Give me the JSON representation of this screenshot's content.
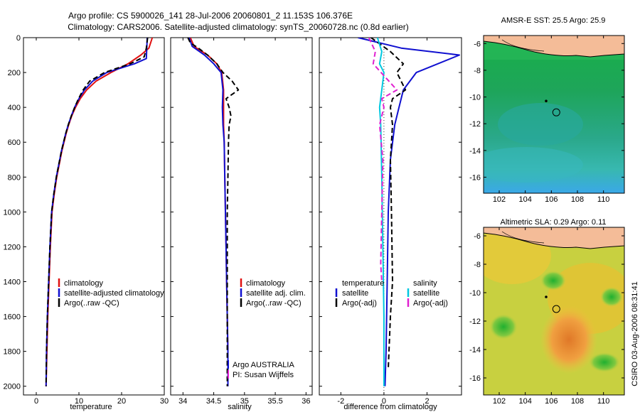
{
  "title_line1": "Argo profile: CS 5900026_141 28-Jul-2006 20060801_2 11.153S 106.376E",
  "title_line2": "Climatology: CARS2006. Satellite-adjusted climatology: synTS_20060728.nc (0.8d earlier)",
  "side_label": "CSIRO 03-Aug-2006 08:31:41",
  "chart_data": [
    {
      "type": "line",
      "xlabel": "temperature",
      "xlim": [
        -3,
        30
      ],
      "ylim": [
        2050,
        0
      ],
      "xticks": [
        0,
        10,
        20,
        30
      ],
      "yticks": [
        0,
        200,
        400,
        600,
        800,
        1000,
        1200,
        1400,
        1600,
        1800,
        2000
      ],
      "legend": [
        "climatology",
        "satellite-adjusted climatology",
        "Argo(..raw -QC)"
      ],
      "series": [
        {
          "name": "climatology",
          "color": "#e01010",
          "x": [
            27.2,
            26.4,
            24.5,
            21.5,
            17.5,
            14.0,
            11.8,
            10.3,
            9.2,
            8.3,
            7.6,
            7.0,
            6.5,
            6.0,
            5.6,
            5.2,
            4.8,
            4.2,
            3.7,
            3.3,
            3.0,
            2.7,
            2.5,
            2.3
          ],
          "y": [
            0,
            60,
            100,
            150,
            200,
            250,
            300,
            350,
            400,
            450,
            500,
            550,
            600,
            650,
            700,
            750,
            800,
            900,
            1000,
            1200,
            1400,
            1600,
            1800,
            2000
          ]
        },
        {
          "name": "satellite-adjusted climatology",
          "color": "#1010d0",
          "x": [
            26.0,
            25.9,
            25.8,
            23.0,
            16.5,
            13.2,
            11.3,
            10.0,
            9.0,
            8.2,
            7.5,
            6.9,
            6.4,
            5.9,
            5.5,
            5.1,
            4.7,
            4.1,
            3.6,
            3.2,
            2.9,
            2.6,
            2.4,
            2.3
          ],
          "y": [
            0,
            60,
            120,
            150,
            200,
            250,
            300,
            350,
            400,
            450,
            500,
            550,
            600,
            650,
            700,
            750,
            800,
            900,
            1000,
            1200,
            1400,
            1600,
            1800,
            2000
          ]
        },
        {
          "name": "Argo(..raw -QC)",
          "color": "#000000",
          "x": [
            26.1,
            25.8,
            25.3,
            22.0,
            16.0,
            12.5,
            11.0,
            9.9,
            9.0,
            8.2,
            7.5,
            6.9,
            6.4,
            5.9,
            5.5,
            5.1,
            4.7,
            4.1,
            3.6,
            3.2,
            2.9,
            2.6,
            2.4,
            2.3
          ],
          "y": [
            0,
            60,
            110,
            150,
            200,
            250,
            300,
            350,
            400,
            450,
            500,
            550,
            600,
            650,
            700,
            750,
            800,
            900,
            1000,
            1200,
            1400,
            1600,
            1800,
            2000
          ]
        }
      ]
    },
    {
      "type": "line",
      "xlabel": "salinity",
      "xlim": [
        33.8,
        36.1
      ],
      "ylim": [
        2050,
        0
      ],
      "xticks": [
        34,
        34.5,
        35,
        35.5,
        36
      ],
      "yticks": [
        0,
        200,
        400,
        600,
        800,
        1000,
        1200,
        1400,
        1600,
        1800,
        2000
      ],
      "legend": [
        "climatology",
        "satellite adj. clim.",
        "Argo(..raw -QC)"
      ],
      "annotation": [
        "Argo AUSTRALIA",
        "PI: Susan Wijffels"
      ],
      "series": [
        {
          "name": "climatology",
          "color": "#e01010",
          "x": [
            34.12,
            34.18,
            34.4,
            34.55,
            34.63,
            34.66,
            34.66,
            34.66,
            34.67,
            34.68,
            34.69,
            34.7,
            34.71,
            34.72,
            34.73,
            34.73
          ],
          "y": [
            0,
            50,
            100,
            150,
            200,
            300,
            400,
            500,
            600,
            800,
            1000,
            1200,
            1400,
            1600,
            1800,
            2000
          ]
        },
        {
          "name": "satellite adj. clim.",
          "color": "#1010d0",
          "x": [
            34.1,
            34.15,
            34.35,
            34.5,
            34.62,
            34.65,
            34.64,
            34.65,
            34.67,
            34.68,
            34.69,
            34.7,
            34.71,
            34.72,
            34.73,
            34.73
          ],
          "y": [
            0,
            50,
            100,
            150,
            200,
            300,
            400,
            500,
            600,
            800,
            1000,
            1200,
            1400,
            1600,
            1800,
            2000
          ]
        },
        {
          "name": "Argo(..raw -QC)",
          "color": "#000000",
          "x": [
            34.08,
            34.12,
            34.25,
            34.4,
            34.55,
            34.65,
            34.8,
            34.9,
            34.7,
            34.75,
            34.78,
            34.75,
            34.74,
            34.73,
            34.72,
            34.72,
            34.72,
            34.72
          ],
          "y": [
            0,
            30,
            60,
            100,
            150,
            200,
            250,
            300,
            350,
            400,
            450,
            500,
            600,
            800,
            1000,
            1400,
            1600,
            2000
          ]
        }
      ]
    },
    {
      "type": "line",
      "xlabel": "difference from climatology",
      "xlim": [
        -3,
        3.6
      ],
      "ylim": [
        2050,
        0
      ],
      "xticks": [
        -2,
        0,
        2
      ],
      "yticks": [
        0,
        200,
        400,
        600,
        800,
        1000,
        1200,
        1400,
        1600,
        1800,
        2000
      ],
      "legend_temperature": {
        "heading": "temperature",
        "items": [
          "satellite",
          "Argo(-adj)"
        ]
      },
      "legend_salinity": {
        "heading": "salinity",
        "items": [
          "satellite",
          "Argo(-adj)"
        ]
      },
      "series": [
        {
          "name": "temperature satellite",
          "color": "#1010d0",
          "x": [
            -1.2,
            0.8,
            3.5,
            1.5,
            0.9,
            0.7,
            0.5,
            0.3,
            0.2,
            0.15,
            0.1,
            0.05
          ],
          "y": [
            0,
            60,
            100,
            200,
            300,
            400,
            500,
            700,
            1000,
            1400,
            1800,
            2000
          ]
        },
        {
          "name": "temperature Argo(-adj)",
          "color": "#000000",
          "x": [
            -0.6,
            0.3,
            0.9,
            0.6,
            1.0,
            0.4,
            0.3,
            0.4,
            0.3,
            0.35,
            0.4,
            0.3,
            0.2
          ],
          "y": [
            0,
            80,
            150,
            200,
            300,
            350,
            400,
            500,
            700,
            1000,
            1400,
            1600,
            1900
          ]
        },
        {
          "name": "salinity satellite",
          "color": "#00c8e0",
          "x": [
            -0.3,
            -0.1,
            -0.2,
            0.0,
            -0.1,
            -0.2,
            -0.15,
            -0.1,
            -0.05,
            0.0,
            0.0
          ],
          "y": [
            0,
            80,
            150,
            200,
            300,
            400,
            500,
            800,
            1200,
            1600,
            2000
          ]
        },
        {
          "name": "salinity Argo(-adj)",
          "color": "#e020d0",
          "x": [
            -0.7,
            -0.4,
            -0.5,
            0.6,
            -0.1,
            0.0,
            -0.2,
            -0.05,
            -0.1,
            -0.15,
            -0.1
          ],
          "y": [
            0,
            80,
            150,
            300,
            350,
            400,
            500,
            700,
            1000,
            1300,
            1400
          ]
        }
      ]
    }
  ],
  "maps": [
    {
      "title": "AMSR-E SST: 25.5 Argo: 25.9",
      "xlim": [
        100.8,
        111.6
      ],
      "ylim": [
        -17.2,
        -5.4
      ],
      "xticks": [
        102,
        104,
        106,
        108,
        110
      ],
      "yticks": [
        -6,
        -8,
        -10,
        -12,
        -14,
        -16
      ],
      "float_position": {
        "lon": 106.38,
        "lat": -11.15
      },
      "prev_position": {
        "lon": 105.6,
        "lat": -10.3
      }
    },
    {
      "title": "Altimetric SLA: 0.29 Argo: 0.11",
      "xlim": [
        100.8,
        111.6
      ],
      "ylim": [
        -17.2,
        -5.4
      ],
      "xticks": [
        102,
        104,
        106,
        108,
        110
      ],
      "yticks": [
        -6,
        -8,
        -10,
        -12,
        -14,
        -16
      ],
      "float_position": {
        "lon": 106.38,
        "lat": -11.15
      },
      "prev_position": {
        "lon": 105.6,
        "lat": -10.3
      }
    }
  ]
}
